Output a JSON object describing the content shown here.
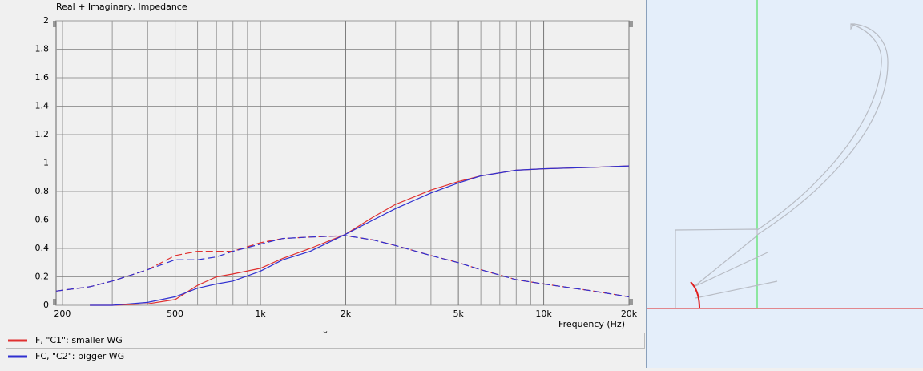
{
  "chart_data": {
    "type": "line",
    "title": "Real + Imaginary, Impedance",
    "x_label": "Frequency  (Hz)",
    "x_scale": "log",
    "xlim": [
      190,
      20000
    ],
    "ylim": [
      0,
      2
    ],
    "xticks": [
      200,
      500,
      {
        "value": 1000,
        "label": "1k"
      },
      {
        "value": 2000,
        "label": "2k"
      },
      {
        "value": 5000,
        "label": "5k"
      },
      {
        "value": 10000,
        "label": "10k"
      },
      {
        "value": 20000,
        "label": "20k"
      }
    ],
    "xgrid": [
      300,
      400,
      600,
      700,
      800,
      900,
      3000,
      4000,
      6000,
      7000,
      8000,
      9000
    ],
    "yticks": [
      0,
      0.2,
      0.4,
      0.6,
      0.8,
      1,
      1.2,
      1.4,
      1.6,
      1.8,
      2
    ],
    "grid": true,
    "legend": "bottom",
    "x": [
      190,
      250,
      300,
      400,
      500,
      600,
      700,
      800,
      1000,
      1200,
      1500,
      2000,
      2500,
      3000,
      4000,
      5000,
      6000,
      8000,
      10000,
      15000,
      20000
    ],
    "series": [
      {
        "name": "F, \"C1\": smaller WG",
        "color": "#e03030",
        "real": [
          null,
          0,
          0,
          0.01,
          0.04,
          0.14,
          0.2,
          0.22,
          0.26,
          0.33,
          0.4,
          0.5,
          0.62,
          0.71,
          0.81,
          0.87,
          0.91,
          0.95,
          0.96,
          0.97,
          0.98
        ],
        "imaginary": [
          0.1,
          0.13,
          0.17,
          0.25,
          0.35,
          0.38,
          0.38,
          0.38,
          0.44,
          0.47,
          0.48,
          0.49,
          0.46,
          0.42,
          0.35,
          0.3,
          0.25,
          0.18,
          0.15,
          0.1,
          0.06
        ]
      },
      {
        "name": "FC, \"C2\": bigger WG",
        "color": "#3030d0",
        "real": [
          null,
          0,
          0,
          0.02,
          0.06,
          0.12,
          0.15,
          0.17,
          0.24,
          0.32,
          0.38,
          0.5,
          0.6,
          0.68,
          0.79,
          0.86,
          0.91,
          0.95,
          0.96,
          0.97,
          0.98
        ],
        "imaginary": [
          0.1,
          0.13,
          0.17,
          0.25,
          0.32,
          0.32,
          0.34,
          0.38,
          0.43,
          0.47,
          0.48,
          0.49,
          0.46,
          0.42,
          0.35,
          0.3,
          0.25,
          0.18,
          0.15,
          0.1,
          0.06
        ]
      }
    ]
  }
}
